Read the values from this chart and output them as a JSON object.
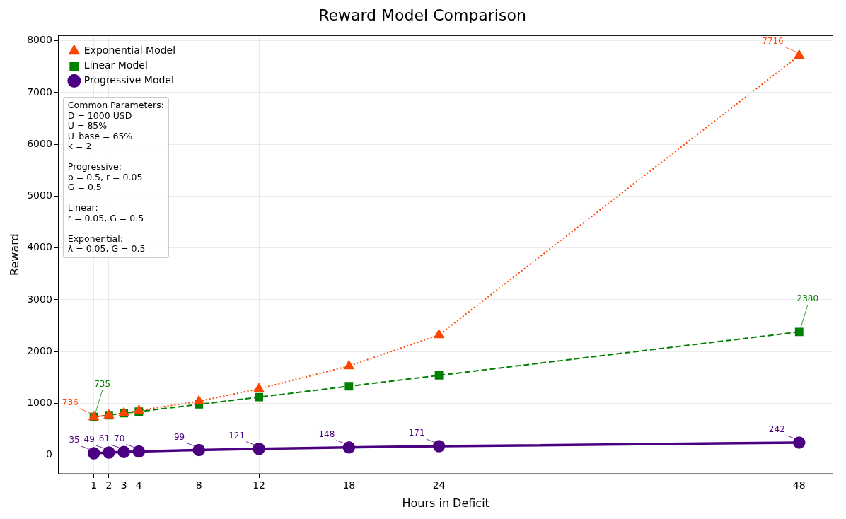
{
  "chart_data": {
    "type": "line",
    "title": "Reward Model Comparison",
    "xlabel": "Hours in Deficit",
    "ylabel": "Reward",
    "x": [
      1,
      2,
      3,
      4,
      8,
      12,
      18,
      24,
      48
    ],
    "xlim": [
      -1.35,
      50.25
    ],
    "xticks": [
      1,
      2,
      3,
      4,
      8,
      12,
      18,
      24,
      48
    ],
    "ylim": [
      -360,
      8100
    ],
    "yticks": [
      0,
      1000,
      2000,
      3000,
      4000,
      5000,
      6000,
      7000,
      8000
    ],
    "grid": true,
    "legend": "top left",
    "series": [
      {
        "name": "Progressive Model",
        "color": "#4b0082",
        "marker": "circle",
        "line_style": "solid",
        "values": [
          35,
          49,
          61,
          70,
          99,
          121,
          148,
          171,
          242
        ],
        "value_labels": [
          "35",
          "49",
          "61",
          "70",
          "99",
          "121",
          "148",
          "171",
          "242"
        ]
      },
      {
        "name": "Linear Model",
        "color": "#008000",
        "marker": "square",
        "line_style": "dashed",
        "values": [
          735,
          770,
          810,
          840,
          980,
          1120,
          1330,
          1540,
          2380
        ],
        "value_labels": [
          "735",
          null,
          null,
          null,
          null,
          null,
          null,
          null,
          "2380"
        ]
      },
      {
        "name": "Exponential Model",
        "color": "#ff4500",
        "marker": "triangle",
        "line_style": "dotted",
        "values": [
          736,
          770,
          810,
          860,
          1040,
          1280,
          1720,
          2320,
          7716
        ],
        "value_labels": [
          "736",
          null,
          null,
          null,
          null,
          null,
          null,
          null,
          "7716"
        ]
      }
    ],
    "annotations": [
      "Common Parameters:\nD = 1000 USD\nU = 85%\nU_base = 65%\nk = 2\n\nProgressive:\np = 0.5, r = 0.05\nG = 0.5\n\nLinear:\nr = 0.05, G = 0.5\n\nExponential:\nλ = 0.05, G = 0.5"
    ]
  }
}
